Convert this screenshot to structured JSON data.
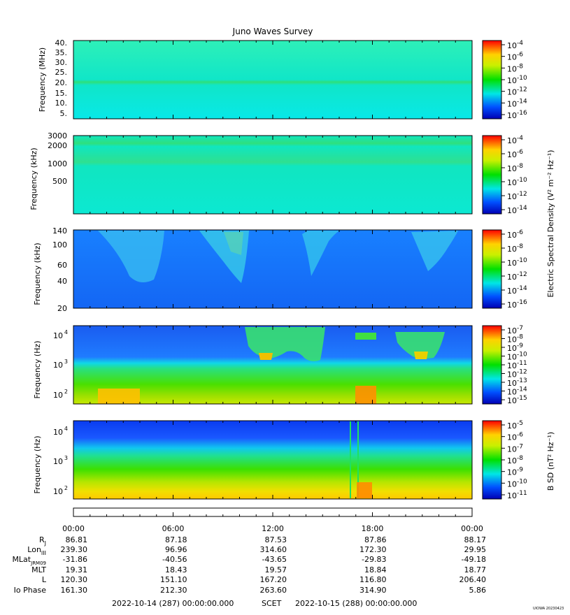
{
  "title": "Juno Waves Survey",
  "footer": {
    "start": "2022-10-14 (287) 00:00:00.000",
    "scet": "SCET",
    "end": "2022-10-15 (288) 00:00:00.000",
    "credit": "UIOWA 20230423"
  },
  "chart_data": [
    {
      "type": "heatmap",
      "ylabel": "Frequency (MHz)",
      "ytick_labels": [
        "40.",
        "35.",
        "30.",
        "25.",
        "20.",
        "15.",
        "10.",
        "5."
      ],
      "colorbar_ticks": [
        "-4",
        "-6",
        "-8",
        "-10",
        "-12",
        "-14",
        "-16"
      ]
    },
    {
      "type": "heatmap",
      "ylabel": "Frequency (kHz)",
      "ytick_labels": [
        "3000",
        "2000",
        "1000",
        "500"
      ],
      "colorbar_ticks": [
        "-4",
        "-6",
        "-8",
        "-10",
        "-12",
        "-14"
      ]
    },
    {
      "type": "heatmap",
      "ylabel": "Frequency (kHz)",
      "ytick_labels": [
        "140",
        "100",
        "60",
        "40",
        "20"
      ],
      "colorbar_ticks": [
        "-6",
        "-8",
        "-10",
        "-12",
        "-14",
        "-16"
      ]
    },
    {
      "type": "heatmap",
      "ylabel": "Frequency (Hz)",
      "ytick_labels": [
        "10",
        "10",
        "10"
      ],
      "ytick_exps": [
        "4",
        "3",
        "2"
      ],
      "colorbar_ticks": [
        "-7",
        "-8",
        "-9",
        "-10",
        "-11",
        "-12",
        "-13",
        "-14",
        "-15"
      ]
    },
    {
      "type": "heatmap",
      "ylabel": "Frequency (Hz)",
      "ytick_labels": [
        "10",
        "10",
        "10"
      ],
      "ytick_exps": [
        "4",
        "3",
        "2"
      ],
      "colorbar_ticks": [
        "-5",
        "-6",
        "-7",
        "-8",
        "-9",
        "-10",
        "-11"
      ]
    }
  ],
  "colorbar_labels": {
    "electric": "Electric Spectral Density (V² m⁻² Hz⁻¹)",
    "magnetic": "B SD (nT² Hz⁻¹)"
  },
  "colorbar_base": "10",
  "time_ticks": [
    "00:00",
    "06:00",
    "12:00",
    "18:00",
    "00:00"
  ],
  "ephemeris": [
    {
      "label": "RJ",
      "values": [
        "86.81",
        "87.18",
        "87.53",
        "87.86",
        "88.17"
      ]
    },
    {
      "label": "LonIII",
      "values": [
        "239.30",
        "96.96",
        "314.60",
        "172.30",
        "29.95"
      ]
    },
    {
      "label": "MLatJRM09",
      "values": [
        "-31.86",
        "-40.56",
        "-43.65",
        "-29.83",
        "-49.18"
      ]
    },
    {
      "label": "MLT",
      "values": [
        "19.31",
        "18.43",
        "19.57",
        "18.84",
        "18.77"
      ]
    },
    {
      "label": "L",
      "values": [
        "120.30",
        "151.10",
        "167.20",
        "116.80",
        "206.40"
      ]
    },
    {
      "label": "Io Phase",
      "values": [
        "161.30",
        "212.30",
        "263.60",
        "314.90",
        "5.86"
      ]
    }
  ]
}
